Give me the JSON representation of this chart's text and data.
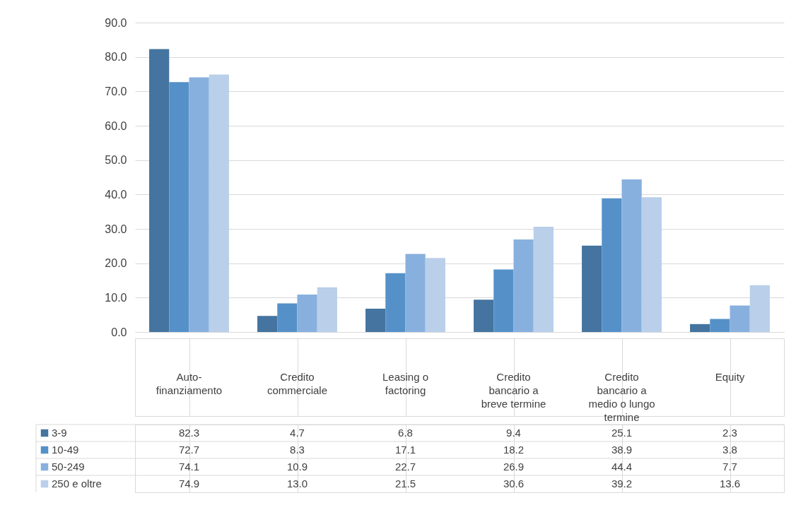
{
  "chart_data": {
    "type": "bar",
    "categories": [
      "Auto-finanziamento",
      "Credito commerciale",
      "Leasing o factoring",
      "Credito bancario a breve termine",
      "Credito bancario a medio o lungo termine",
      "Equity"
    ],
    "series": [
      {
        "name": "3-9",
        "color": "#44749f",
        "values": [
          82.3,
          4.7,
          6.8,
          9.4,
          25.1,
          2.3
        ],
        "value_labels": [
          "82.3",
          "4.7",
          "6.8",
          "9.4",
          "25.1",
          "2.3"
        ]
      },
      {
        "name": "10-49",
        "color": "#5591c8",
        "values": [
          72.7,
          8.3,
          17.1,
          18.2,
          38.9,
          3.8
        ],
        "value_labels": [
          "72.7",
          "8.3",
          "17.1",
          "18.2",
          "38.9",
          "3.8"
        ]
      },
      {
        "name": "50-249",
        "color": "#88b0de",
        "values": [
          74.1,
          10.9,
          22.7,
          26.9,
          44.4,
          7.7
        ],
        "value_labels": [
          "74.1",
          "10.9",
          "22.7",
          "26.9",
          "44.4",
          "7.7"
        ]
      },
      {
        "name": "250 e oltre",
        "color": "#b9cfea",
        "values": [
          74.9,
          13.0,
          21.5,
          30.6,
          39.2,
          13.6
        ],
        "value_labels": [
          "74.9",
          "13.0",
          "21.5",
          "30.6",
          "39.2",
          "13.6"
        ]
      }
    ],
    "ylim": [
      0,
      90
    ],
    "yticks": [
      {
        "value": 0,
        "label": "0.0"
      },
      {
        "value": 10,
        "label": "10.0"
      },
      {
        "value": 20,
        "label": "20.0"
      },
      {
        "value": 30,
        "label": "30.0"
      },
      {
        "value": 40,
        "label": "40.0"
      },
      {
        "value": 50,
        "label": "50.0"
      },
      {
        "value": 60,
        "label": "60.0"
      },
      {
        "value": 70,
        "label": "70.0"
      },
      {
        "value": 80,
        "label": "80.0"
      },
      {
        "value": 90,
        "label": "90.0"
      }
    ],
    "grid": "y",
    "legend": "bottom"
  }
}
